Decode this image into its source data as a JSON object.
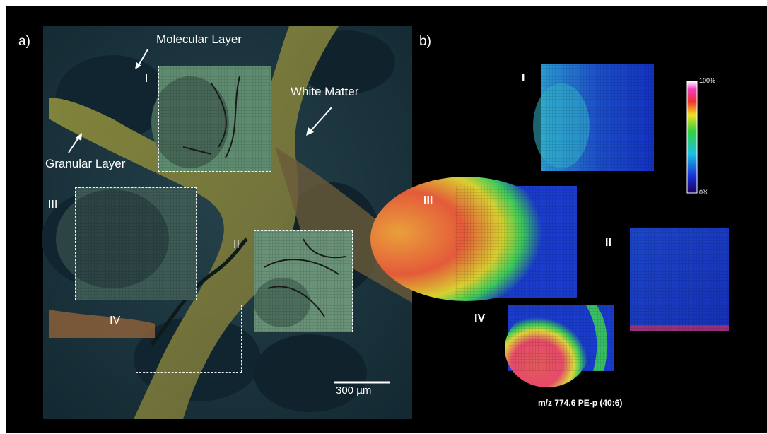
{
  "panel_a": {
    "letter": "a)",
    "labels": {
      "molecular": "Molecular Layer",
      "white": "White Matter",
      "granular": "Granular Layer"
    },
    "regions": [
      "I",
      "II",
      "III",
      "IV"
    ],
    "scale_bar": "300 µm"
  },
  "panel_b": {
    "letter": "b)",
    "regions": [
      "I",
      "III",
      "II",
      "IV"
    ],
    "colorbar": {
      "max": "100%",
      "min": "0%"
    },
    "caption": "m/z 774.6 PE-p (40:6)"
  },
  "colors": {
    "background": "#000000",
    "tissue": "#1d3a45",
    "white_matter": "#7a8a3a",
    "intensity_low": "#0d1fb8",
    "intensity_mid": "#38d050",
    "intensity_high": "#e8304a"
  }
}
